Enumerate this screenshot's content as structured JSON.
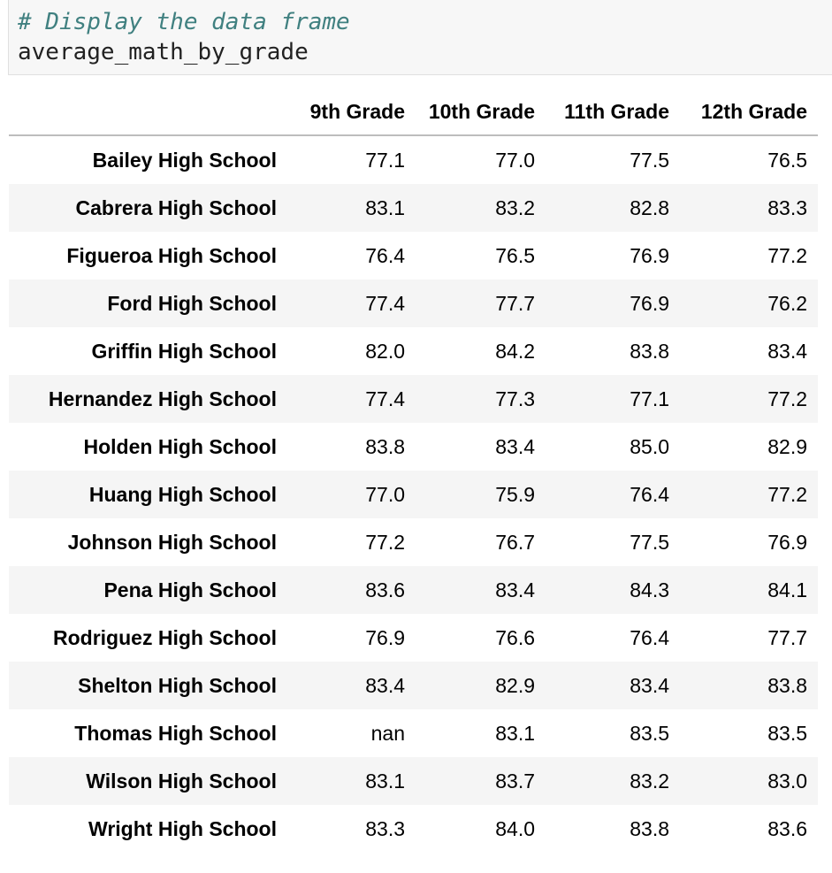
{
  "code": {
    "comment": "# Display the data frame",
    "expression": "average_math_by_grade"
  },
  "table": {
    "columns": [
      "9th Grade",
      "10th Grade",
      "11th Grade",
      "12th Grade"
    ],
    "rows": [
      {
        "school": "Bailey High School",
        "values": [
          "77.1",
          "77.0",
          "77.5",
          "76.5"
        ]
      },
      {
        "school": "Cabrera High School",
        "values": [
          "83.1",
          "83.2",
          "82.8",
          "83.3"
        ]
      },
      {
        "school": "Figueroa High School",
        "values": [
          "76.4",
          "76.5",
          "76.9",
          "77.2"
        ]
      },
      {
        "school": "Ford High School",
        "values": [
          "77.4",
          "77.7",
          "76.9",
          "76.2"
        ]
      },
      {
        "school": "Griffin High School",
        "values": [
          "82.0",
          "84.2",
          "83.8",
          "83.4"
        ]
      },
      {
        "school": "Hernandez High School",
        "values": [
          "77.4",
          "77.3",
          "77.1",
          "77.2"
        ]
      },
      {
        "school": "Holden High School",
        "values": [
          "83.8",
          "83.4",
          "85.0",
          "82.9"
        ]
      },
      {
        "school": "Huang High School",
        "values": [
          "77.0",
          "75.9",
          "76.4",
          "77.2"
        ]
      },
      {
        "school": "Johnson High School",
        "values": [
          "77.2",
          "76.7",
          "77.5",
          "76.9"
        ]
      },
      {
        "school": "Pena High School",
        "values": [
          "83.6",
          "83.4",
          "84.3",
          "84.1"
        ]
      },
      {
        "school": "Rodriguez High School",
        "values": [
          "76.9",
          "76.6",
          "76.4",
          "77.7"
        ]
      },
      {
        "school": "Shelton High School",
        "values": [
          "83.4",
          "82.9",
          "83.4",
          "83.8"
        ]
      },
      {
        "school": "Thomas High School",
        "values": [
          "nan",
          "83.1",
          "83.5",
          "83.5"
        ]
      },
      {
        "school": "Wilson High School",
        "values": [
          "83.1",
          "83.7",
          "83.2",
          "83.0"
        ]
      },
      {
        "school": "Wright High School",
        "values": [
          "83.3",
          "84.0",
          "83.8",
          "83.6"
        ]
      }
    ]
  }
}
